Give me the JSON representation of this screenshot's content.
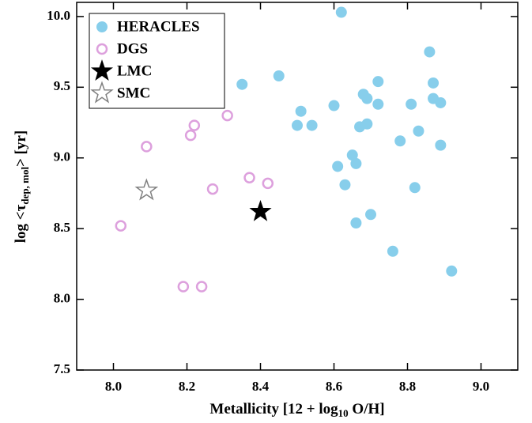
{
  "chart_data": {
    "type": "scatter",
    "x_label": {
      "main": "Metallicity [12 + log",
      "sub": "10",
      "tail": " O/H]"
    },
    "y_label": {
      "main": "log <τ",
      "sub": "dep, mol",
      "tail": "> [yr]"
    },
    "xlim": [
      7.9,
      9.1
    ],
    "ylim": [
      7.5,
      10.1
    ],
    "xticks": [
      {
        "value": 8.0,
        "label": "8.0"
      },
      8.2,
      8.4,
      8.6,
      8.8,
      {
        "value": 9.0,
        "label": "9.0"
      }
    ],
    "yticks": [
      7.5,
      {
        "value": 8.0,
        "label": "8.0"
      },
      8.5,
      {
        "value": 9.0,
        "label": "9.0"
      },
      9.5,
      {
        "value": 10.0,
        "label": "10.0"
      }
    ],
    "legend": "upper left",
    "series": [
      {
        "name": "HERACLES",
        "color": "#87ceeb",
        "marker": "circle",
        "filled": true,
        "x": [
          8.62,
          8.45,
          8.35,
          8.51,
          8.5,
          8.54,
          8.6,
          8.68,
          8.69,
          8.72,
          8.72,
          8.67,
          8.69,
          8.81,
          8.86,
          8.87,
          8.87,
          8.89,
          8.83,
          8.78,
          8.89,
          8.65,
          8.66,
          8.61,
          8.63,
          8.82,
          8.7,
          8.66,
          8.76,
          8.92
        ],
        "values": [
          10.03,
          9.58,
          9.52,
          9.33,
          9.23,
          9.23,
          9.37,
          9.45,
          9.42,
          9.54,
          9.38,
          9.22,
          9.24,
          9.38,
          9.75,
          9.53,
          9.42,
          9.39,
          9.19,
          9.12,
          9.09,
          9.02,
          8.96,
          8.94,
          8.81,
          8.79,
          8.6,
          8.54,
          8.34,
          8.2
        ]
      },
      {
        "name": "DGS",
        "color": "#dda0dd",
        "marker": "circle",
        "filled": false,
        "x": [
          8.09,
          8.22,
          8.21,
          8.31,
          8.27,
          8.37,
          8.42,
          8.02,
          8.19,
          8.24
        ],
        "values": [
          9.08,
          9.23,
          9.16,
          9.3,
          8.78,
          8.86,
          8.82,
          8.52,
          8.09,
          8.09
        ]
      },
      {
        "name": "LMC",
        "color": "#000000",
        "marker": "star",
        "filled": true,
        "x": [
          8.4
        ],
        "values": [
          8.62
        ]
      },
      {
        "name": "SMC",
        "color": "#808080",
        "marker": "star",
        "filled": false,
        "x": [
          8.09
        ],
        "values": [
          8.77
        ]
      }
    ]
  }
}
